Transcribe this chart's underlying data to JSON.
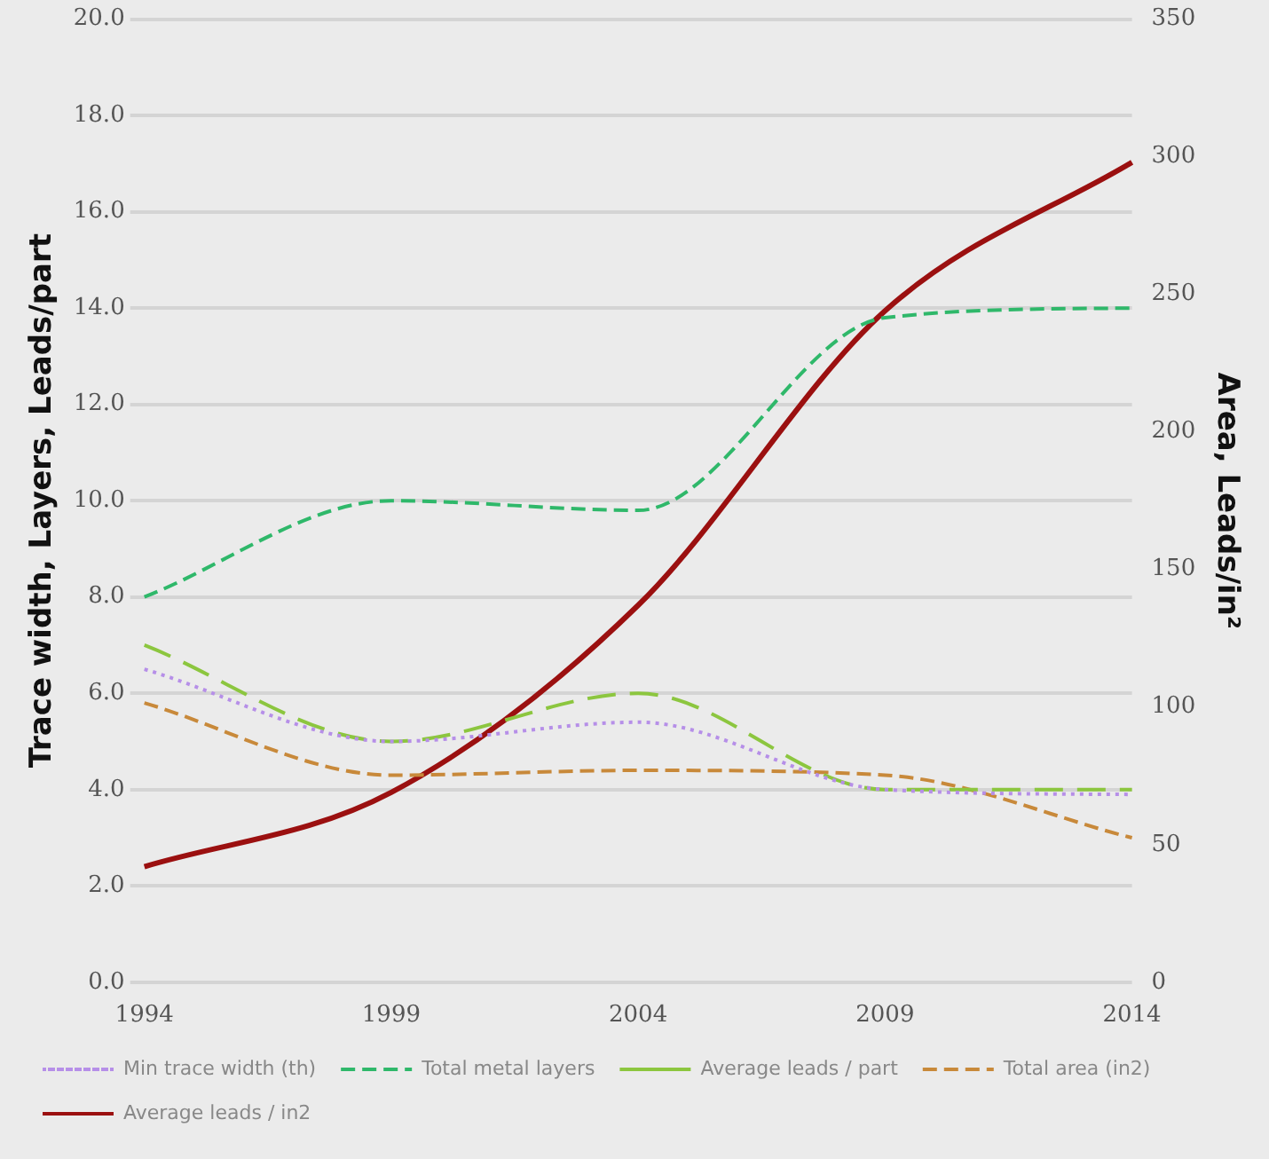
{
  "chart_data": {
    "type": "line",
    "categories": [
      "1994",
      "1999",
      "2004",
      "2009",
      "2014"
    ],
    "ylabel": "Trace width, Layers, Leads/part",
    "y2label": "Area, Leads/in²",
    "ylim": [
      0,
      20
    ],
    "yticks": [
      {
        "value": 0,
        "label": "0.0"
      },
      {
        "value": 2,
        "label": "2.0"
      },
      {
        "value": 4,
        "label": "4.0"
      },
      {
        "value": 6,
        "label": "6.0"
      },
      {
        "value": 8,
        "label": "8.0"
      },
      {
        "value": 10,
        "label": "10.0"
      },
      {
        "value": 12,
        "label": "12.0"
      },
      {
        "value": 14,
        "label": "14.0"
      },
      {
        "value": 16,
        "label": "16.0"
      },
      {
        "value": 18,
        "label": "18.0"
      },
      {
        "value": 20,
        "label": "20.0"
      }
    ],
    "y2lim": [
      0,
      350
    ],
    "y2ticks": [
      0,
      50,
      100,
      150,
      200,
      250,
      300,
      350
    ],
    "grid": "y",
    "legend": "bottom",
    "marker": "none",
    "series": [
      {
        "name": "Min trace width (th)",
        "color": "#b68fe8",
        "line_style": "dotted",
        "values": [
          6.5,
          5.0,
          5.4,
          4.0,
          3.9
        ]
      },
      {
        "name": "Total metal layers",
        "color": "#2fb86a",
        "line_style": "dashed",
        "values": [
          8.0,
          10.0,
          9.8,
          13.8,
          14.0
        ]
      },
      {
        "name": "Average leads / part",
        "color": "#8cc63f",
        "line_style": "dashed",
        "values": [
          7.0,
          5.0,
          6.0,
          4.0,
          4.0
        ]
      },
      {
        "name": "Total area (in2)",
        "color": "#c8893a",
        "line_style": "dashed",
        "values": [
          5.8,
          4.3,
          4.4,
          4.3,
          3.0
        ]
      },
      {
        "name": "Average leads / in2",
        "color": "#9b1010",
        "line_style": "solid",
        "axis": "y2",
        "values": [
          42,
          69,
          137,
          244,
          298
        ]
      }
    ]
  }
}
